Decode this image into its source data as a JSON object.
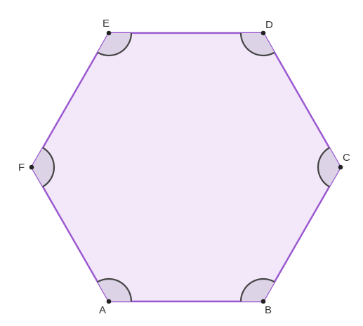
{
  "figure": {
    "vertices": [
      {
        "id": "A",
        "label": "A"
      },
      {
        "id": "B",
        "label": "B"
      },
      {
        "id": "C",
        "label": "C"
      },
      {
        "id": "D",
        "label": "D"
      },
      {
        "id": "E",
        "label": "E"
      },
      {
        "id": "F",
        "label": "F"
      }
    ],
    "colors": {
      "edge": "#9B59D0",
      "fill": "#F3E8FA",
      "angle_fill": "#DCD3E6",
      "angle_stroke": "#444444",
      "point": "#222222",
      "label": "#333333"
    }
  }
}
